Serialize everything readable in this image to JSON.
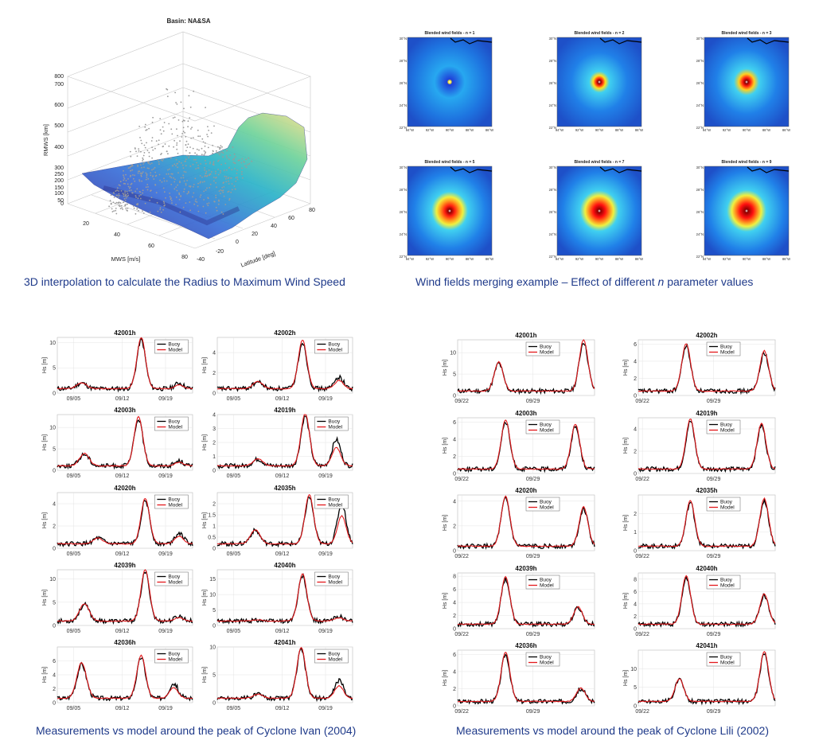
{
  "captions": {
    "three_d": "3D interpolation to calculate the Radius to Maximum Wind Speed",
    "wind_pre": "Wind fields merging example – Effect of different ",
    "wind_n": "n",
    "wind_post": " parameter values",
    "ivan": "Measurements vs model around the peak of Cyclone Ivan (2004)",
    "lili": "Measurements vs model around the peak of Cyclone Lili (2002)"
  },
  "colors": {
    "buoy": "#000000",
    "model": "#e3191c",
    "caption": "#1f3a8a"
  },
  "chart_data": [
    {
      "id": "rmws-surface",
      "type": "scatter",
      "title": "Basin: NA&SA",
      "xlabel": "MWS [m/s]",
      "ylabel": "Latitude [deg]",
      "zlabel": "RMWS [km]",
      "xticks": [
        "20",
        "40",
        "60",
        "80"
      ],
      "yticks": [
        "-40",
        "-20",
        "0",
        "20",
        "40",
        "60",
        "80"
      ],
      "zticks": [
        "0",
        "50",
        "100",
        "150",
        "200",
        "250",
        "300",
        "400",
        "500",
        "600",
        "700",
        "800"
      ]
    },
    {
      "id": "wind-fields",
      "type": "heatmap",
      "panels": [
        {
          "title": "Blended wind fields - n = 1",
          "n": 1
        },
        {
          "title": "Blended wind fields - n = 2",
          "n": 2
        },
        {
          "title": "Blended wind fields - n = 3",
          "n": 3
        },
        {
          "title": "Blended wind fields - n = 5",
          "n": 5
        },
        {
          "title": "Blended wind fields - n = 7",
          "n": 7
        },
        {
          "title": "Blended wind fields - n = 9",
          "n": 9
        }
      ],
      "yticks": [
        "30°N",
        "28°N",
        "26°N",
        "24°N",
        "22°N"
      ],
      "xticks": [
        "94°W",
        "92°W",
        "90°W",
        "88°W",
        "86°W"
      ]
    },
    {
      "id": "ivan",
      "type": "line",
      "ylabel": "Hs [m]",
      "xticks": [
        "09/05",
        "09/12",
        "09/19"
      ],
      "legend": [
        "Buoy",
        "Model"
      ],
      "panels": [
        {
          "title": "42001h",
          "ymax": 11,
          "yticks": [
            0,
            5,
            10
          ],
          "peaks": [
            [
              0.18,
              2.0
            ],
            [
              0.62,
              10.5
            ],
            [
              0.9,
              2.0
            ]
          ]
        },
        {
          "title": "42002h",
          "ymax": 5.5,
          "yticks": [
            0,
            2,
            4
          ],
          "peaks": [
            [
              0.3,
              1.1
            ],
            [
              0.63,
              5.0
            ],
            [
              0.9,
              1.6
            ]
          ]
        },
        {
          "title": "42003h",
          "ymax": 13,
          "yticks": [
            0,
            5,
            10
          ],
          "peaks": [
            [
              0.2,
              3.8
            ],
            [
              0.6,
              12.0
            ],
            [
              0.9,
              2.2
            ]
          ]
        },
        {
          "title": "42019h",
          "ymax": 4,
          "yticks": [
            0,
            1,
            2,
            3,
            4
          ],
          "peaks": [
            [
              0.3,
              0.8
            ],
            [
              0.65,
              3.9
            ],
            [
              0.88,
              2.2
            ]
          ]
        },
        {
          "title": "42020h",
          "ymax": 5,
          "yticks": [
            0,
            2,
            4
          ],
          "peaks": [
            [
              0.3,
              0.9
            ],
            [
              0.65,
              4.3
            ],
            [
              0.9,
              1.4
            ]
          ]
        },
        {
          "title": "42035h",
          "ymax": 2.5,
          "yticks": [
            0,
            0.5,
            1,
            1.5,
            2
          ],
          "peaks": [
            [
              0.28,
              0.8
            ],
            [
              0.68,
              2.3
            ],
            [
              0.92,
              2.0
            ]
          ]
        },
        {
          "title": "42039h",
          "ymax": 12,
          "yticks": [
            0,
            5,
            10
          ],
          "peaks": [
            [
              0.2,
              4.5
            ],
            [
              0.65,
              11.5
            ],
            [
              0.9,
              2.0
            ]
          ]
        },
        {
          "title": "42040h",
          "ymax": 18,
          "yticks": [
            0,
            5,
            10,
            15
          ],
          "peaks": [
            [
              0.3,
              1.8
            ],
            [
              0.63,
              16.0
            ],
            [
              0.9,
              3.0
            ]
          ]
        },
        {
          "title": "42036h",
          "ymax": 8,
          "yticks": [
            0,
            2,
            4,
            6
          ],
          "peaks": [
            [
              0.18,
              5.5
            ],
            [
              0.62,
              6.5
            ],
            [
              0.86,
              2.8
            ]
          ]
        },
        {
          "title": "42041h",
          "ymax": 10,
          "yticks": [
            0,
            5,
            10
          ],
          "peaks": [
            [
              0.3,
              1.5
            ],
            [
              0.62,
              9.5
            ],
            [
              0.9,
              4.0
            ]
          ]
        }
      ]
    },
    {
      "id": "lili",
      "type": "line",
      "ylabel": "Hs [m]",
      "xticks": [
        "09/22",
        "09/29"
      ],
      "legend": [
        "Buoy",
        "Model"
      ],
      "panels": [
        {
          "title": "42001h",
          "ymax": 13,
          "yticks": [
            0,
            5,
            10
          ],
          "peaks": [
            [
              0.3,
              7.5
            ],
            [
              0.92,
              12.5
            ]
          ]
        },
        {
          "title": "42002h",
          "ymax": 6.5,
          "yticks": [
            0,
            2,
            4,
            6
          ],
          "peaks": [
            [
              0.35,
              5.8
            ],
            [
              0.92,
              5.0
            ]
          ]
        },
        {
          "title": "42003h",
          "ymax": 6.5,
          "yticks": [
            0,
            2,
            4,
            6
          ],
          "peaks": [
            [
              0.35,
              6.0
            ],
            [
              0.86,
              5.5
            ]
          ]
        },
        {
          "title": "42019h",
          "ymax": 5,
          "yticks": [
            0,
            2,
            4
          ],
          "peaks": [
            [
              0.38,
              4.7
            ],
            [
              0.9,
              4.3
            ]
          ]
        },
        {
          "title": "42020h",
          "ymax": 4.5,
          "yticks": [
            0,
            2,
            4
          ],
          "peaks": [
            [
              0.35,
              4.2
            ],
            [
              0.92,
              3.4
            ]
          ]
        },
        {
          "title": "42035h",
          "ymax": 3,
          "yticks": [
            0,
            1,
            2
          ],
          "peaks": [
            [
              0.38,
              2.6
            ],
            [
              0.92,
              2.7
            ]
          ]
        },
        {
          "title": "42039h",
          "ymax": 8.5,
          "yticks": [
            0,
            2,
            4,
            6,
            8
          ],
          "peaks": [
            [
              0.35,
              7.6
            ],
            [
              0.88,
              3.2
            ]
          ]
        },
        {
          "title": "42040h",
          "ymax": 9,
          "yticks": [
            0,
            2,
            4,
            6,
            8
          ],
          "peaks": [
            [
              0.35,
              8.2
            ],
            [
              0.92,
              5.4
            ]
          ]
        },
        {
          "title": "42036h",
          "ymax": 6.5,
          "yticks": [
            0,
            2,
            4,
            6
          ],
          "peaks": [
            [
              0.35,
              6.0
            ],
            [
              0.9,
              2.0
            ]
          ]
        },
        {
          "title": "42041h",
          "ymax": 15,
          "yticks": [
            0,
            5,
            10
          ],
          "peaks": [
            [
              0.3,
              7.0
            ],
            [
              0.92,
              14.0
            ]
          ]
        }
      ]
    }
  ]
}
